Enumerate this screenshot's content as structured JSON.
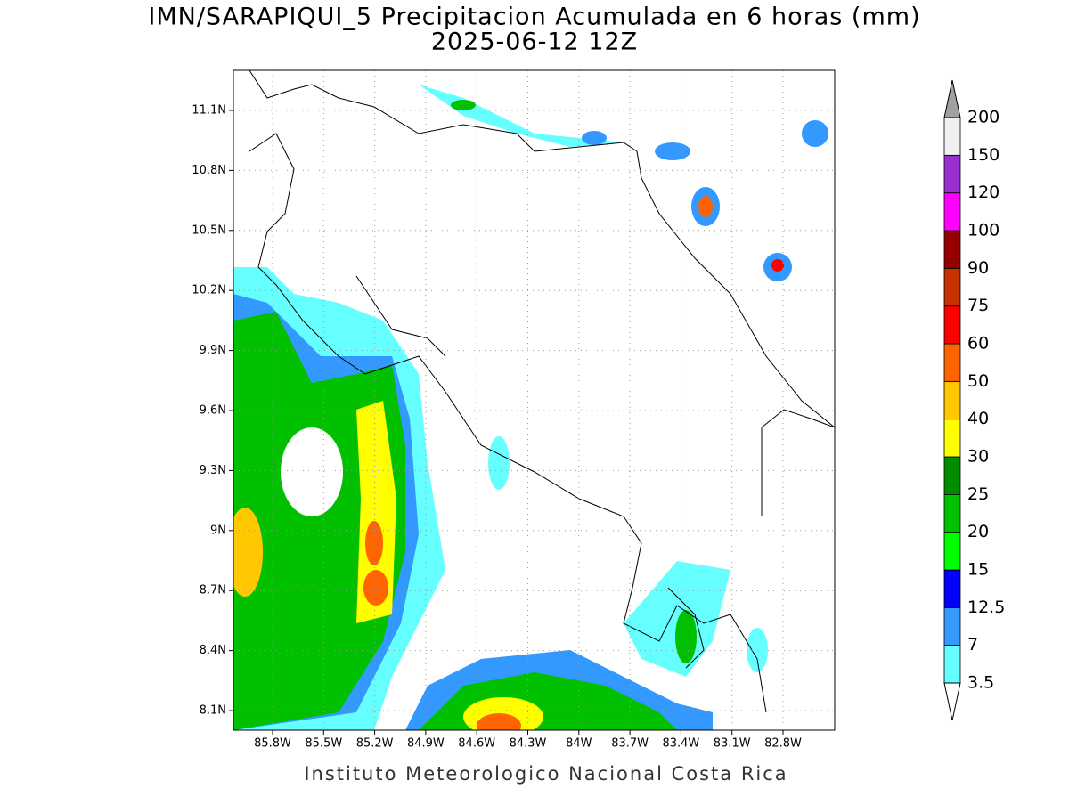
{
  "header": {
    "title": "IMN/SARAPIQUI_5 Precipitacion Acumulada en 6 horas (mm)",
    "subtitle": "2025-06-12 12Z"
  },
  "map": {
    "lat_labels": [
      "11.1N",
      "10.8N",
      "10.5N",
      "10.2N",
      "9.9N",
      "9.6N",
      "9.3N",
      "9N",
      "8.7N",
      "8.4N",
      "8.1N"
    ],
    "lon_labels": [
      "85.8W",
      "85.5W",
      "85.2W",
      "84.9W",
      "84.6W",
      "84.3W",
      "84W",
      "83.7W",
      "83.4W",
      "83.1W",
      "82.8W"
    ],
    "grid": true
  },
  "colorbar": {
    "levels": [
      3.5,
      7,
      12.5,
      15,
      20,
      25,
      30,
      40,
      50,
      60,
      75,
      90,
      100,
      120,
      150,
      200
    ],
    "colors": [
      "#66ffff",
      "#3399ff",
      "#0000ff",
      "#00ff00",
      "#00c000",
      "#008c00",
      "#ffff00",
      "#ffc800",
      "#ff6400",
      "#ff0000",
      "#c83200",
      "#960000",
      "#ff00ff",
      "#9b30d0",
      "#f0f0f0"
    ],
    "over_color": "#a0a0a0",
    "under_color": "#ffffff"
  },
  "footer": "Instituto Meteorologico Nacional Costa Rica"
}
